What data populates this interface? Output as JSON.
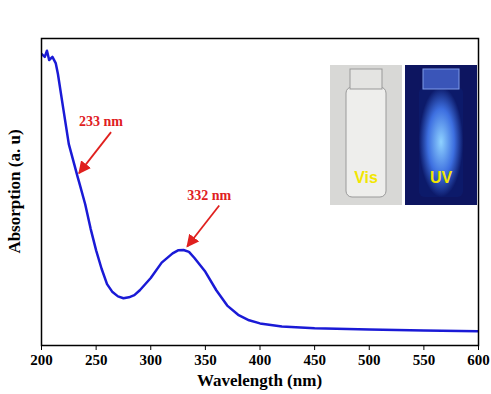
{
  "chart_data": {
    "type": "line",
    "x_label": "Wavelength (nm)",
    "y_label": "Absorption (a. u)",
    "color": "#1a1ad6",
    "x": [
      200,
      203,
      205,
      207,
      210,
      213,
      215,
      220,
      225,
      230,
      233,
      235,
      240,
      245,
      250,
      255,
      260,
      265,
      270,
      275,
      280,
      285,
      290,
      300,
      310,
      320,
      325,
      330,
      335,
      340,
      350,
      360,
      370,
      380,
      390,
      400,
      420,
      450,
      500,
      550,
      600
    ],
    "values": [
      95,
      94,
      96,
      93,
      94,
      92,
      88.5,
      77,
      65.6,
      59,
      55,
      52.5,
      46,
      38,
      31,
      25,
      20,
      17.4,
      16,
      15.4,
      15.7,
      16.4,
      18,
      22,
      27,
      30,
      31,
      31.1,
      30.5,
      28.5,
      24,
      18,
      13,
      10,
      8.2,
      7.2,
      6.2,
      5.6,
      5.2,
      4.9,
      4.6
    ],
    "xlim": [
      200,
      600
    ],
    "xticks": [
      200,
      250,
      300,
      350,
      400,
      450,
      500,
      550,
      600
    ],
    "ylim": [
      0,
      100
    ],
    "yticks": [],
    "tick_labels": "x",
    "annotations": [
      {
        "text": "233 nm",
        "x": 233,
        "y": 55
      },
      {
        "text": "332 nm",
        "x": 332,
        "y": 31.1
      }
    ],
    "inset_labels": [
      "Vis",
      "UV"
    ]
  }
}
